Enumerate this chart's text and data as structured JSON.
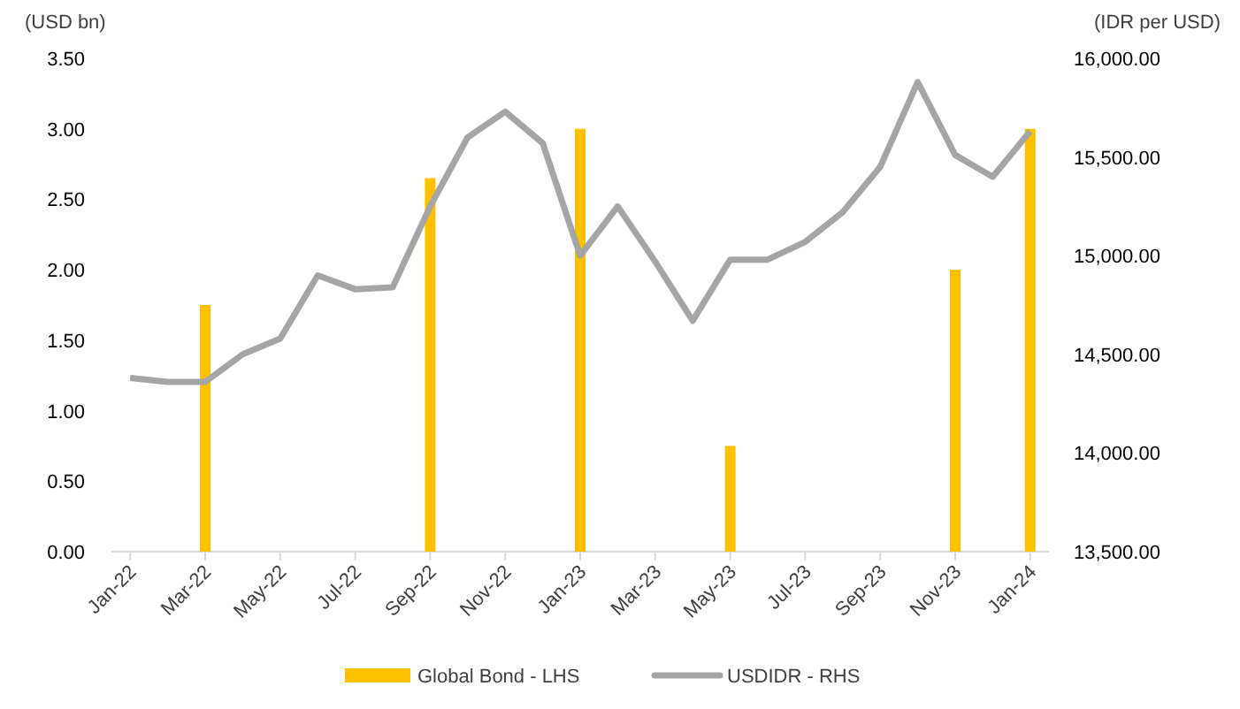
{
  "chart_data": {
    "type": "bar",
    "ylabel": "(USD bn)",
    "y2label": "(IDR per USD)",
    "categories": [
      "Jan-22",
      null,
      "Mar-22",
      null,
      "May-22",
      null,
      "Jul-22",
      null,
      "Sep-22",
      null,
      "Nov-22",
      null,
      "Jan-23",
      null,
      "Mar-23",
      null,
      "May-23",
      null,
      "Jul-23",
      null,
      "Sep-23",
      null,
      "Nov-23",
      null,
      "Jan-24"
    ],
    "series": [
      {
        "name": "Global Bond - LHS",
        "color": "#ffc000",
        "values": [
          null,
          null,
          1.75,
          null,
          null,
          null,
          null,
          null,
          2.65,
          null,
          null,
          null,
          3.0,
          null,
          null,
          null,
          0.75,
          null,
          null,
          null,
          null,
          null,
          2.0,
          null,
          3.0
        ]
      },
      {
        "name": "USDIDR - RHS",
        "type": "line",
        "axis": "y2",
        "color": "#a5a5a5",
        "values": [
          14380,
          14360,
          14360,
          14500,
          14580,
          14900,
          14830,
          14840,
          15250,
          15600,
          15730,
          15570,
          15000,
          15250,
          14970,
          14670,
          14980,
          14980,
          15070,
          15220,
          15450,
          15880,
          15510,
          15400,
          15630
        ]
      }
    ],
    "ylim": [
      0,
      3.5
    ],
    "yticks": [
      {
        "value": 0,
        "label": "0.00"
      },
      {
        "value": 0.5,
        "label": "0.50"
      },
      {
        "value": 1,
        "label": "1.00"
      },
      {
        "value": 1.5,
        "label": "1.50"
      },
      {
        "value": 2,
        "label": "2.00"
      },
      {
        "value": 2.5,
        "label": "2.50"
      },
      {
        "value": 3,
        "label": "3.00"
      },
      {
        "value": 3.5,
        "label": "3.50"
      }
    ],
    "y2lim": [
      13500,
      16000
    ],
    "y2ticks": [
      {
        "value": 13500,
        "label": "13,500.00"
      },
      {
        "value": 14000,
        "label": "14,000.00"
      },
      {
        "value": 14500,
        "label": "14,500.00"
      },
      {
        "value": 15000,
        "label": "15,000.00"
      },
      {
        "value": 15500,
        "label": "15,500.00"
      },
      {
        "value": 16000,
        "label": "16,000.00"
      }
    ],
    "grid": false,
    "legend": "bottom",
    "marker": "none",
    "line_style": "solid"
  }
}
